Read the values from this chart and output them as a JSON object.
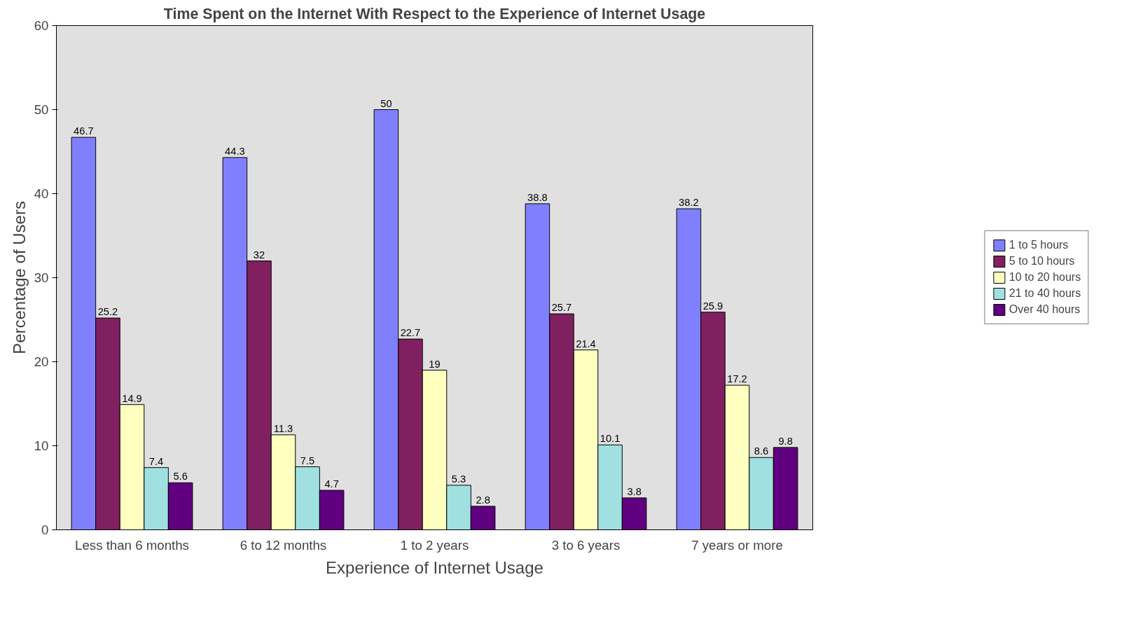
{
  "chart_data": {
    "type": "bar",
    "title": "Time Spent on the Internet With Respect to the Experience of Internet Usage",
    "xlabel": "Experience of Internet Usage",
    "ylabel": "Percentage of Users",
    "categories": [
      "Less than 6 months",
      "6 to 12 months",
      "1 to 2 years",
      "3 to 6 years",
      "7 years or more"
    ],
    "series": [
      {
        "name": "1 to 5 hours",
        "color": "#8080ff",
        "values": [
          46.7,
          44.3,
          50,
          38.8,
          38.2
        ]
      },
      {
        "name": "5 to 10 hours",
        "color": "#802060",
        "values": [
          25.2,
          32,
          22.7,
          25.7,
          25.9
        ]
      },
      {
        "name": "10 to 20 hours",
        "color": "#ffffc0",
        "values": [
          14.9,
          11.3,
          19,
          21.4,
          17.2
        ]
      },
      {
        "name": "21 to 40 hours",
        "color": "#a0e0e0",
        "values": [
          7.4,
          7.5,
          5.3,
          10.1,
          8.6
        ]
      },
      {
        "name": "Over 40 hours",
        "color": "#600080",
        "values": [
          5.6,
          4.7,
          2.8,
          3.8,
          9.8
        ]
      }
    ],
    "ylim": [
      0,
      60
    ],
    "yticks": [
      0,
      10,
      20,
      30,
      40,
      50,
      60
    ],
    "grid": false,
    "legend": "right",
    "data_labels": true
  }
}
